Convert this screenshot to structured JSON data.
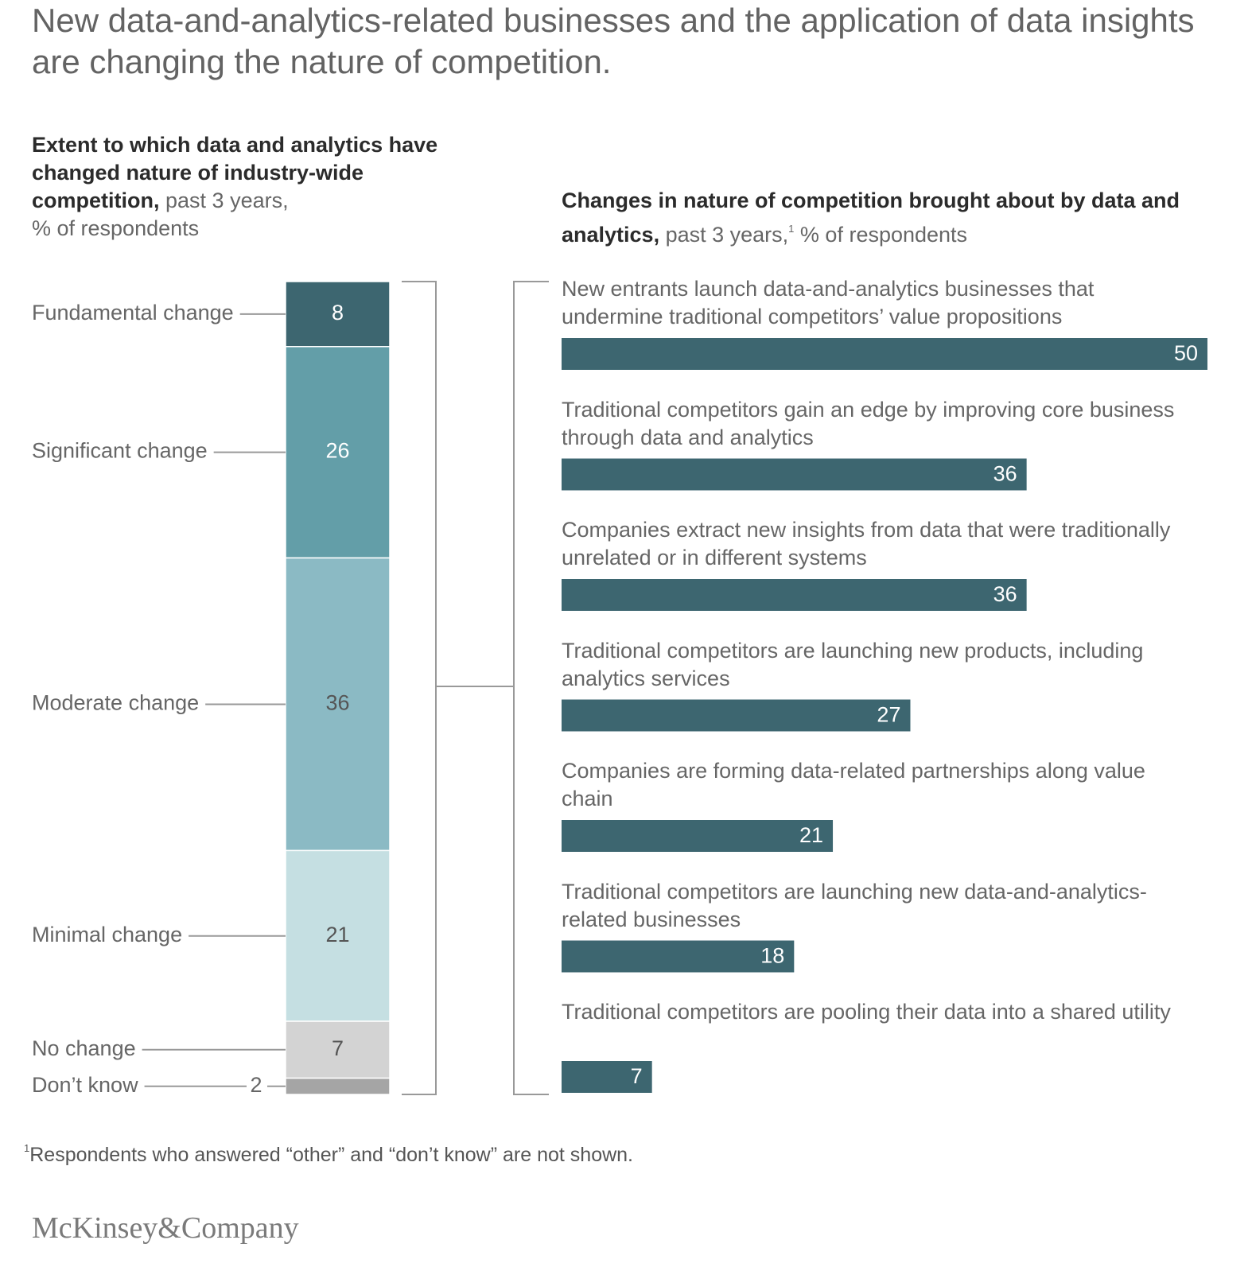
{
  "title": "New data-and-analytics-related businesses and the application of data insights are changing the nature of competition.",
  "chart_data": [
    {
      "type": "stacked_bar",
      "title_bold": "Extent to which data and analytics have changed nature of industry-wide competition,",
      "title_rest": "past 3 years,",
      "title_units": "% of respondents",
      "categories": [
        "Fundamental change",
        "Significant change",
        "Moderate change",
        "Minimal change",
        "No change",
        "Don’t know"
      ],
      "values": [
        8,
        26,
        36,
        21,
        7,
        2
      ],
      "colors": [
        "#3d6670",
        "#639ea8",
        "#8bbac4",
        "#c5dfe2",
        "#d3d3d3",
        "#a5a5a5"
      ]
    },
    {
      "type": "bar",
      "orientation": "horizontal",
      "title_bold": "Changes in nature of competition brought about by data and analytics,",
      "title_rest": "past 3 years,",
      "title_note": "1",
      "title_units": "% of respondents",
      "categories": [
        "New entrants launch data-and-analytics businesses that undermine traditional competitors’ value propositions",
        "Traditional competitors gain an edge by improving core business through data and analytics",
        "Companies extract new insights from data that were traditionally unrelated or in different systems",
        "Traditional competitors are launching new products, including analytics services",
        "Companies are forming data-related partnerships along value chain",
        "Traditional competitors are launching new data-and-analytics-related businesses",
        "Traditional competitors are pooling their data into a shared utility"
      ],
      "values": [
        50,
        36,
        36,
        27,
        21,
        18,
        7
      ],
      "color": "#3d6670"
    }
  ],
  "footnote_mark": "1",
  "footnote": "Respondents who answered “other” and “don’t know” are not shown.",
  "logo": "McKinsey&Company"
}
